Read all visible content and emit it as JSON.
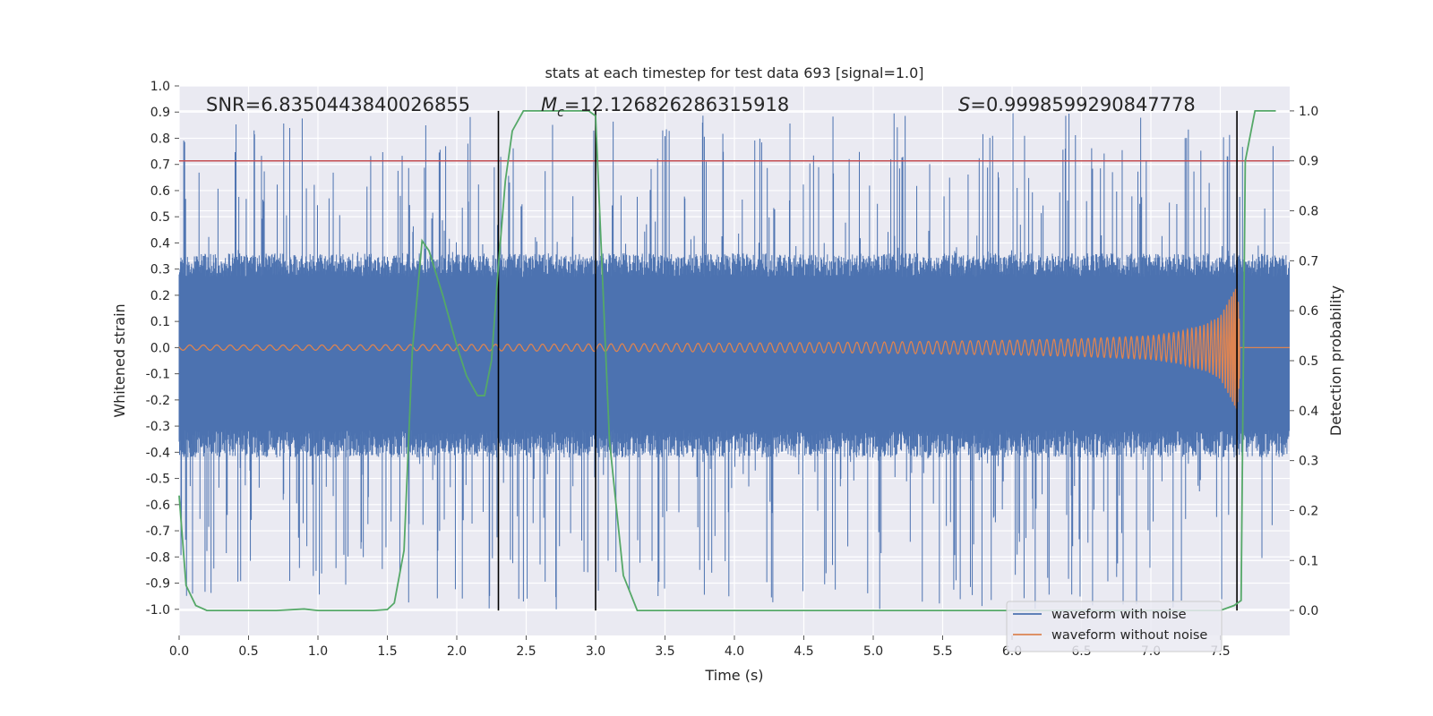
{
  "chart_data": {
    "type": "line",
    "title": "stats at each timestep for test data 693 [signal=1.0]",
    "xlabel": "Time (s)",
    "ylabel_left": "Whitened strain",
    "ylabel_right": "Detection probability",
    "xlim": [
      0.0,
      8.0
    ],
    "ylim_left": [
      -1.1,
      1.0
    ],
    "ylim_right": [
      -0.05,
      1.05
    ],
    "x_ticks": [
      "0.0",
      "0.5",
      "1.0",
      "1.5",
      "2.0",
      "2.5",
      "3.0",
      "3.5",
      "4.0",
      "4.5",
      "5.0",
      "5.5",
      "6.0",
      "6.5",
      "7.0",
      "7.5"
    ],
    "left_ticks": [
      "1.0",
      "0.9",
      "0.8",
      "0.7",
      "0.6",
      "0.5",
      "0.4",
      "0.3",
      "0.2",
      "0.1",
      "0.0",
      "-0.1",
      "-0.2",
      "-0.3",
      "-0.4",
      "-0.5",
      "-0.6",
      "-0.7",
      "-0.8",
      "-0.9",
      "-1.0"
    ],
    "right_ticks": [
      "1.0",
      "0.9",
      "0.8",
      "0.7",
      "0.6",
      "0.5",
      "0.4",
      "0.3",
      "0.2",
      "0.1",
      "0.0"
    ],
    "grid": true,
    "annotations": {
      "snr": "SNR=6.8350443840026855",
      "mc_symbol": "M",
      "mc_sub": "c",
      "mc_value": "=12.126826286315918",
      "s_symbol": "S",
      "s_value": "=0.9998599290847778"
    },
    "threshold_line": {
      "axis": "right",
      "y": 0.9,
      "color": "#c44e52"
    },
    "vertical_lines": [
      2.3,
      3.0,
      7.62
    ],
    "noise_envelope": {
      "name": "waveform with noise",
      "color": "#4c72b0",
      "core_min": -0.42,
      "core_max": 0.36,
      "spike_min": -1.0,
      "spike_max": 0.9
    },
    "signal_envelope": {
      "name": "waveform without noise",
      "color": "#dd8452",
      "x": [
        0.0,
        1.0,
        2.0,
        3.0,
        4.0,
        5.0,
        6.0,
        6.5,
        7.0,
        7.2,
        7.4,
        7.5,
        7.58,
        7.62,
        7.66,
        7.7,
        8.0
      ],
      "amplitude": [
        0.01,
        0.01,
        0.012,
        0.014,
        0.017,
        0.021,
        0.028,
        0.034,
        0.045,
        0.06,
        0.09,
        0.12,
        0.2,
        0.24,
        0.0,
        0.0,
        0.0
      ]
    },
    "detection_probability": {
      "color": "#55a868",
      "x": [
        0.0,
        0.05,
        0.12,
        0.2,
        0.4,
        0.7,
        0.9,
        1.0,
        1.2,
        1.4,
        1.5,
        1.55,
        1.62,
        1.68,
        1.75,
        1.8,
        1.9,
        2.0,
        2.07,
        2.15,
        2.2,
        2.25,
        2.3,
        2.35,
        2.4,
        2.48,
        2.6,
        2.8,
        2.95,
        3.0,
        3.1,
        3.2,
        3.3,
        4.0,
        5.0,
        6.0,
        7.0,
        7.5,
        7.6,
        7.65,
        7.68,
        7.75,
        7.9
      ],
      "y": [
        0.23,
        0.05,
        0.01,
        0.0,
        0.0,
        0.0,
        0.003,
        0.0,
        0.0,
        0.0,
        0.002,
        0.015,
        0.12,
        0.52,
        0.74,
        0.72,
        0.63,
        0.53,
        0.47,
        0.43,
        0.43,
        0.5,
        0.69,
        0.86,
        0.96,
        1.0,
        1.0,
        1.0,
        1.0,
        0.99,
        0.34,
        0.07,
        0.0,
        0.0,
        0.0,
        0.0,
        0.0,
        0.0,
        0.01,
        0.02,
        0.9,
        1.0,
        1.0
      ]
    },
    "legend": {
      "placement": "lower-right",
      "entries": [
        {
          "label": "waveform with noise",
          "color": "#4c72b0"
        },
        {
          "label": "waveform without noise",
          "color": "#dd8452"
        }
      ]
    },
    "colors": {
      "axes_bg": "#eaeaf2",
      "grid": "#ffffff",
      "vline": "#000000"
    }
  }
}
